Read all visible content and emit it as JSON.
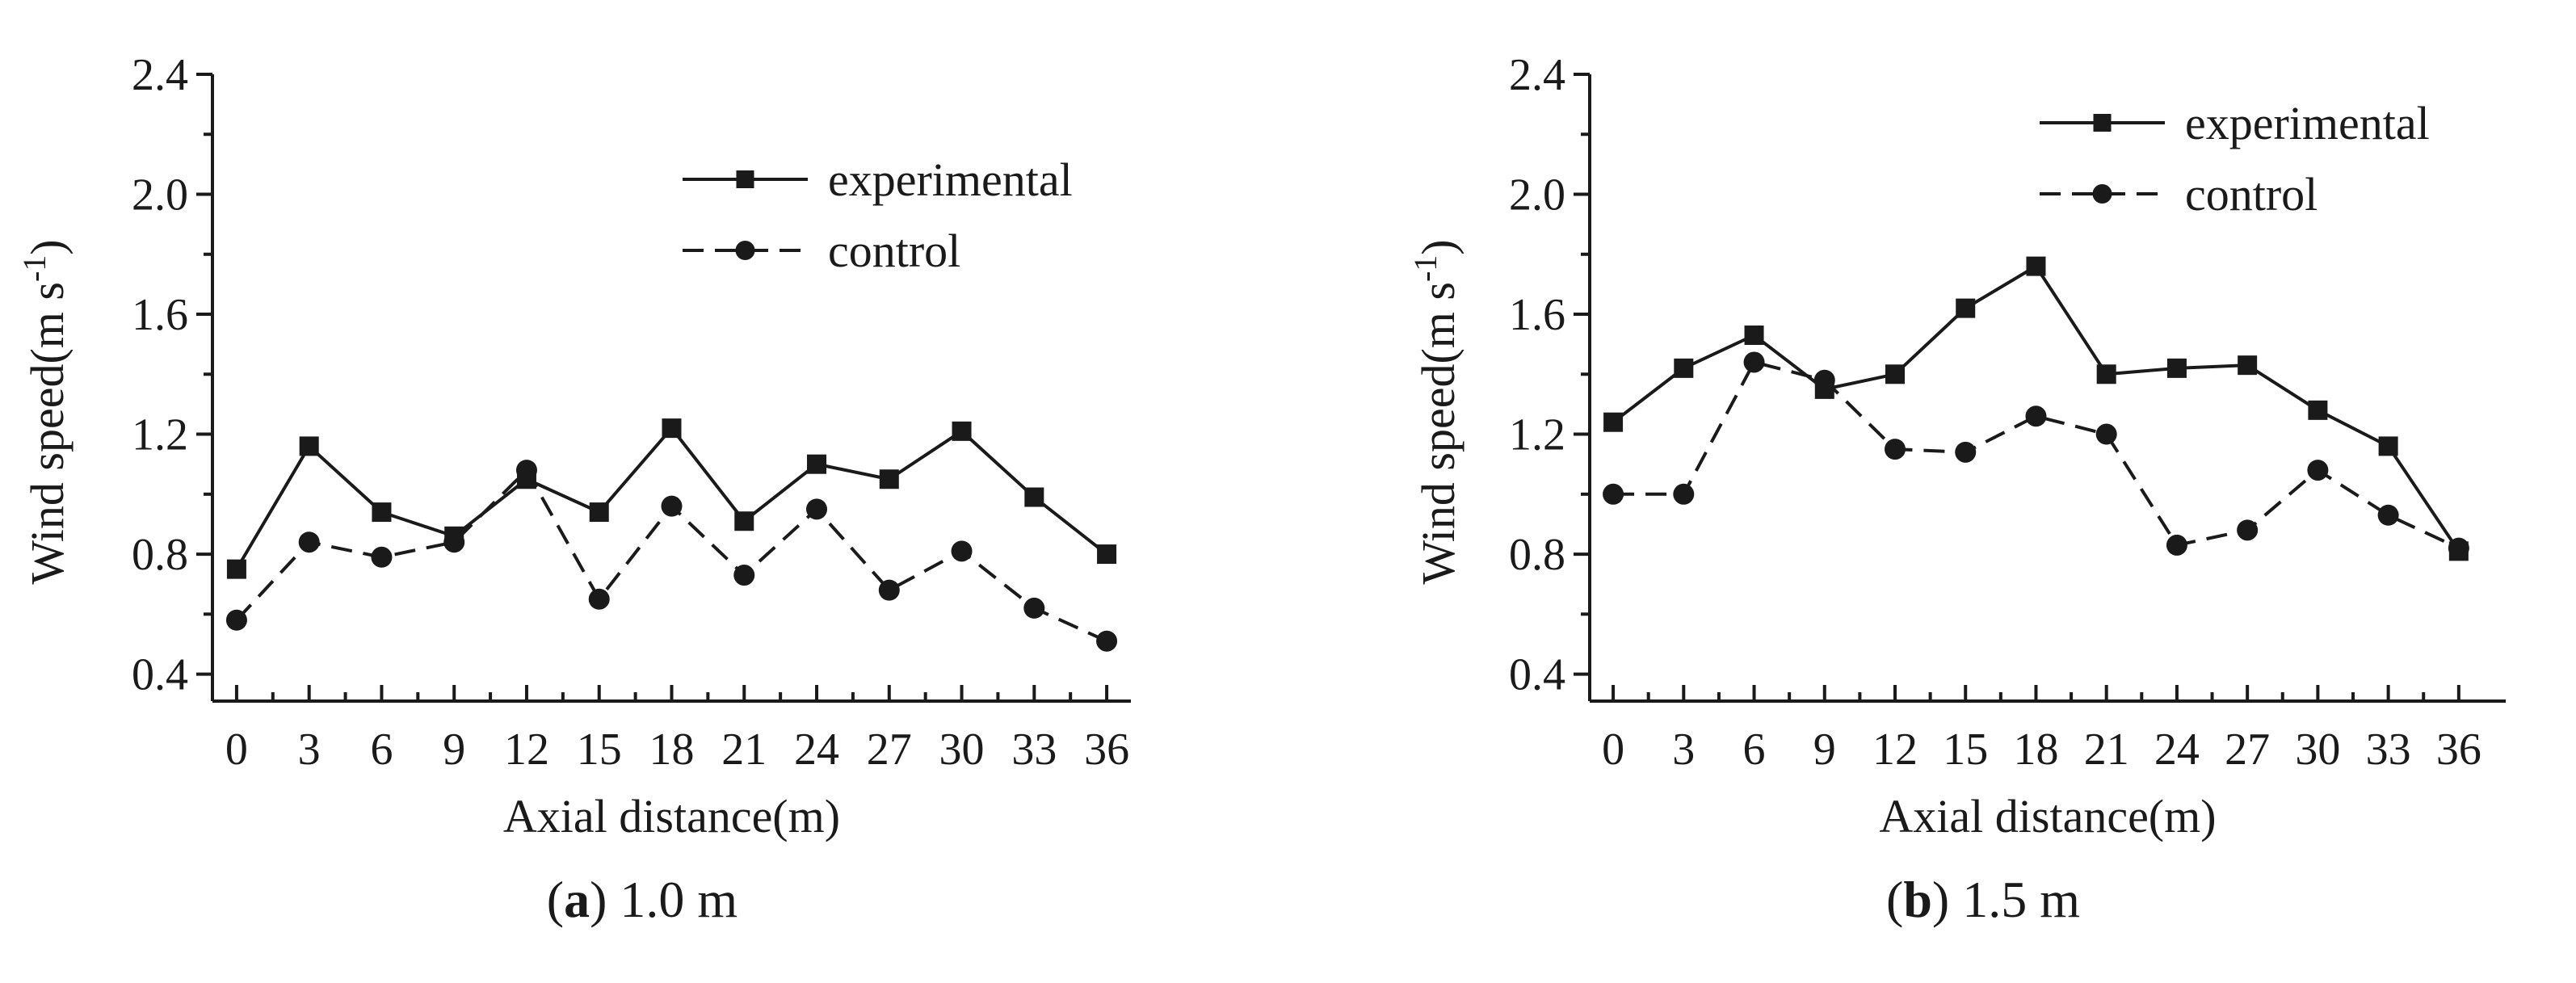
{
  "chart_data": [
    {
      "type": "line",
      "caption_letter": "a",
      "caption_rest": " 1.0 m",
      "xlabel": "Axial distance(m)",
      "ylabel_main": "Wind speed(m s",
      "ylabel_sup": "-1",
      "ylabel_end": ")",
      "x": [
        0,
        3,
        6,
        9,
        12,
        15,
        18,
        21,
        24,
        27,
        30,
        33,
        36
      ],
      "x_tick_labels": [
        "0",
        "3",
        "6",
        "9",
        "12",
        "15",
        "18",
        "21",
        "24",
        "27",
        "30",
        "33",
        "36"
      ],
      "y_tick_values": [
        0.4,
        0.8,
        1.2,
        1.6,
        2.0,
        2.4
      ],
      "y_tick_labels": [
        "0.4",
        "0.8",
        "1.2",
        "1.6",
        "2.0",
        "2.4"
      ],
      "xlim": [
        -1,
        37
      ],
      "ylim": [
        0.31,
        2.4
      ],
      "legend_position": "top-right",
      "series": [
        {
          "name": "experimental",
          "marker": "square",
          "line": "solid",
          "values": [
            0.75,
            1.16,
            0.94,
            0.86,
            1.05,
            0.94,
            1.22,
            0.91,
            1.1,
            1.05,
            1.21,
            0.99,
            0.8
          ]
        },
        {
          "name": "control",
          "marker": "circle",
          "line": "dashed",
          "values": [
            0.58,
            0.84,
            0.79,
            0.84,
            1.08,
            0.65,
            0.96,
            0.73,
            0.95,
            0.68,
            0.81,
            0.62,
            0.51
          ]
        }
      ]
    },
    {
      "type": "line",
      "caption_letter": "b",
      "caption_rest": " 1.5 m",
      "xlabel": "Axial distance(m)",
      "ylabel_main": "Wind speed(m s",
      "ylabel_sup": "-1",
      "ylabel_end": ")",
      "x": [
        0,
        3,
        6,
        9,
        12,
        15,
        18,
        21,
        24,
        27,
        30,
        33,
        36
      ],
      "x_tick_labels": [
        "0",
        "3",
        "6",
        "9",
        "12",
        "15",
        "18",
        "21",
        "24",
        "27",
        "30",
        "33",
        "36"
      ],
      "y_tick_values": [
        0.4,
        0.8,
        1.2,
        1.6,
        2.0,
        2.4
      ],
      "y_tick_labels": [
        "0.4",
        "0.8",
        "1.2",
        "1.6",
        "2.0",
        "2.4"
      ],
      "xlim": [
        -1,
        38
      ],
      "ylim": [
        0.31,
        2.4
      ],
      "legend_position": "top-right",
      "series": [
        {
          "name": "experimental",
          "marker": "square",
          "line": "solid",
          "values": [
            1.24,
            1.42,
            1.53,
            1.35,
            1.4,
            1.62,
            1.76,
            1.4,
            1.42,
            1.43,
            1.28,
            1.16,
            0.81
          ]
        },
        {
          "name": "control",
          "marker": "circle",
          "line": "dashed",
          "values": [
            1.0,
            1.0,
            1.44,
            1.38,
            1.15,
            1.14,
            1.26,
            1.2,
            0.83,
            0.88,
            1.08,
            0.93,
            0.82
          ]
        }
      ]
    }
  ]
}
